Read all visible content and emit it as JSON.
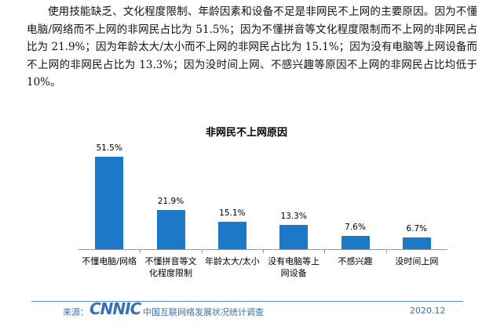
{
  "paragraph": "使用技能缺乏、文化程度限制、年龄因素和设备不足是非网民不上网的主要原因。因为不懂电脑/网络而不上网的非网民占比为 51.5%；因为不懂拼音等文化程度限制而不上网的非网民占比为 21.9%；因为年龄太大/太小而不上网的非网民占比为 15.1%；因为没有电脑等上网设备而不上网的非网民占比为 13.3%；因为没时间上网、不感兴趣等原因不上网的非网民占比均低于10%。",
  "chart_data": {
    "type": "bar",
    "title": "非网民不上网原因",
    "categories": [
      "不懂电脑/网络",
      "不懂拼音等文化程度限制",
      "年龄太大/太小",
      "没有电脑等上网设备",
      "不感兴趣",
      "没时间上网"
    ],
    "values": [
      51.5,
      21.9,
      15.1,
      13.3,
      7.6,
      6.7
    ],
    "value_labels": [
      "51.5%",
      "21.9%",
      "15.1%",
      "13.3%",
      "7.6%",
      "6.7%"
    ],
    "color": "#1e78c8"
  },
  "footer": {
    "source": "来源：",
    "logo": "CNNIC",
    "survey": "中国互联网络发展状况统计调查",
    "date": "2020.12"
  }
}
